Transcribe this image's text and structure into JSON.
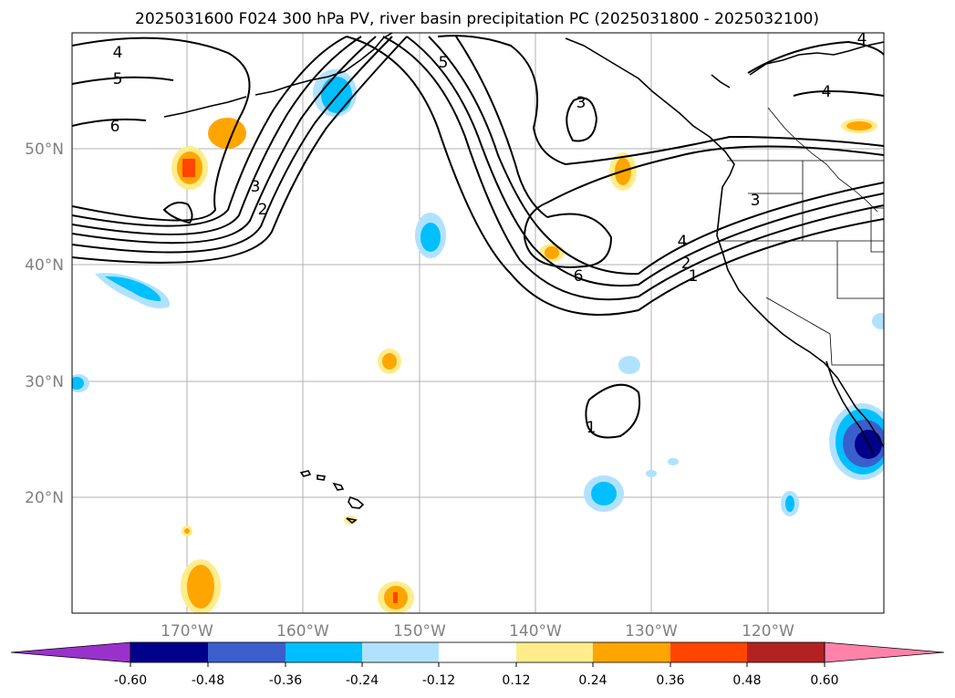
{
  "title": "2025031600 F024 300 hPa PV, river basin precipitation PC (2025031800 - 2025032100)",
  "lat_labels": [
    "50°N",
    "40°N",
    "30°N",
    "20°N"
  ],
  "lon_labels": [
    "170°W",
    "160°W",
    "150°W",
    "140°W",
    "130°W",
    "120°W"
  ],
  "colorbar": {
    "ticks": [
      "-0.60",
      "-0.48",
      "-0.36",
      "-0.24",
      "-0.12",
      "0.12",
      "0.24",
      "0.36",
      "0.48",
      "0.60"
    ],
    "colors": [
      "#9932cc",
      "#00008b",
      "#3a5fcd",
      "#00bfff",
      "#b0e2ff",
      "#ffffff",
      "#ffec8b",
      "#ffa500",
      "#ff4500",
      "#b22222",
      "#ff82ab"
    ]
  },
  "contour_labels": [
    "4",
    "5",
    "6",
    "5",
    "3",
    "3",
    "2",
    "3",
    "4",
    "2",
    "1",
    "6",
    "1",
    "4",
    "4"
  ]
}
